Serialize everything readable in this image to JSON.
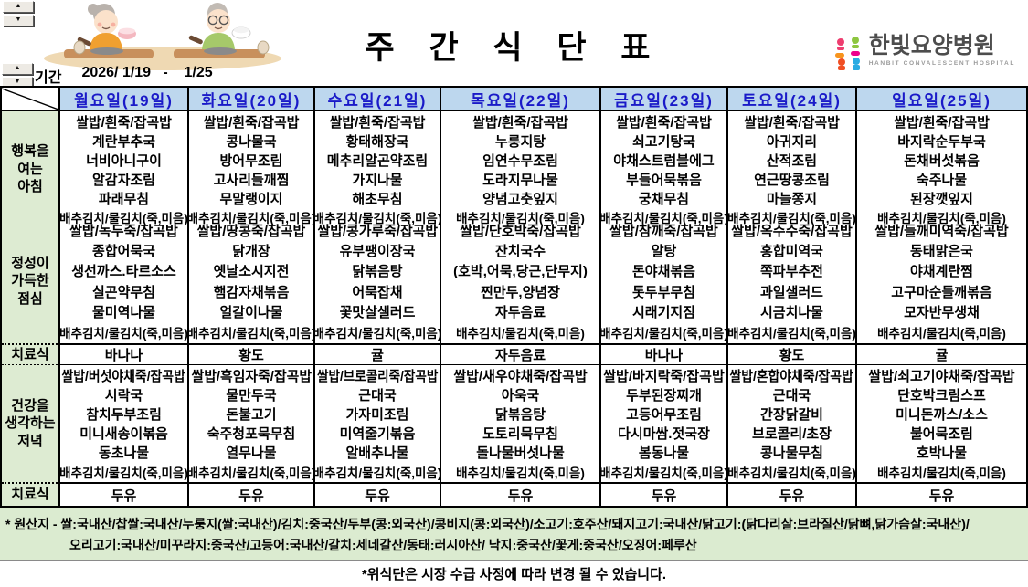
{
  "page": {
    "title": "주 간 식 단 표",
    "period_label": "기간",
    "period_value": "2026/ 1/19   -    1/25",
    "note": "*위식단은 시장 수급 사정에 따라 변경 될 수 있습니다."
  },
  "logo": {
    "name": "한빛요양병원",
    "subtitle": "HANBIT CONVALESCENT HOSPITAL",
    "mark_colors": [
      "#EE3D6F",
      "#F7941D",
      "#F04E23",
      "#8DC63F",
      "#EC008C",
      "#29ABE2"
    ]
  },
  "colors": {
    "day_header_bg": "#BDD7EE",
    "day_header_text": "#1A1AC8",
    "row_label_bg": "#DDEBD2",
    "footer_bg": "#DBEBD0",
    "border": "#000000"
  },
  "table": {
    "days": [
      "월요일(19일)",
      "화요일(20일)",
      "수요일(21일)",
      "목요일(22일)",
      "금요일(23일)",
      "토요일(24일)",
      "일요일(25일)"
    ],
    "sections": [
      {
        "type": "meal",
        "label_lines": [
          "행복을",
          "여는",
          "아침"
        ],
        "days": [
          [
            "쌀밥/흰죽/잡곡밥",
            "계란부추국",
            "너비아니구이",
            "알감자조림",
            "파래무침",
            "배추김치/물김치(죽,미음)"
          ],
          [
            "쌀밥/흰죽/잡곡밥",
            "콩나물국",
            "방어무조림",
            "고사리들깨찜",
            "무말랭이지",
            "배추김치/물김치(죽,미음)"
          ],
          [
            "쌀밥/흰죽/잡곡밥",
            "황태해장국",
            "메추리알곤약조림",
            "가지나물",
            "해초무침",
            "배추김치/물김치(죽,미음)"
          ],
          [
            "쌀밥/흰죽/잡곡밥",
            "누룽지탕",
            "임연수무조림",
            "도라지무나물",
            "양념고춧잎지",
            "배추김치/물김치(죽,미음)"
          ],
          [
            "쌀밥/흰죽/잡곡밥",
            "쇠고기탕국",
            "야채스트럼블에그",
            "부들어묵볶음",
            "궁채무침",
            "배추김치/물김치(죽,미음)"
          ],
          [
            "쌀밥/흰죽/잡곡밥",
            "아귀지리",
            "산적조림",
            "연근땅콩조림",
            "마늘쫑지",
            "배추김치/물김치(죽,미음)"
          ],
          [
            "쌀밥/흰죽/잡곡밥",
            "바지락순두부국",
            "돈채버섯볶음",
            "숙주나물",
            "된장깻잎지",
            "배추김치/물김치(죽,미음)"
          ]
        ]
      },
      {
        "type": "meal",
        "label_lines": [
          "정성이",
          "가득한",
          "점심"
        ],
        "days": [
          [
            "쌀밥/녹두죽/잡곡밥",
            "종합어묵국",
            "생선까스.타르소스",
            "실곤약무침",
            "물미역나물",
            "배추김치/물김치(죽,미음)"
          ],
          [
            "쌀밥/땅콩죽/잡곡밥",
            "닭개장",
            "옛날소시지전",
            "햄감자채볶음",
            "얼갈이나물",
            "배추김치/물김치(죽,미음)"
          ],
          [
            "쌀밥/콩가루죽/잡곡밥",
            "유부팽이장국",
            "닭볶음탕",
            "어묵잡채",
            "꽃맛살샐러드",
            "배추김치/물김치(죽,미음)"
          ],
          [
            "쌀밥/단호박죽/잡곡밥",
            "잔치국수",
            "(호박,어묵,당근,단무지)",
            "찐만두,양념장",
            "자두음료",
            "배추김치/물김치(죽,미음)"
          ],
          [
            "쌀밥/참깨죽/잡곡밥",
            "알탕",
            "돈야채볶음",
            "톳두부무침",
            "시래기지짐",
            "배추김치/물김치(죽,미음)"
          ],
          [
            "쌀밥/옥수수죽/잡곡밥",
            "홍합미역국",
            "쪽파부추전",
            "과일샐러드",
            "시금치나물",
            "배추김치/물김치(죽,미음)"
          ],
          [
            "쌀밥/들깨미역죽/잡곡밥",
            "동태맑은국",
            "야채계란찜",
            "고구마순들깨볶음",
            "모자반무생채",
            "배추김치/물김치(죽,미음)"
          ]
        ]
      },
      {
        "type": "therapy",
        "label": "치료식",
        "values": [
          "바나나",
          "황도",
          "귤",
          "자두음료",
          "바나나",
          "황도",
          "귤"
        ]
      },
      {
        "type": "meal",
        "label_lines": [
          "건강을",
          "생각하는",
          "저녁"
        ],
        "days": [
          [
            "쌀밥/버섯야채죽/잡곡밥",
            "시락국",
            "참치두부조림",
            "미니새송이볶음",
            "동초나물",
            "배추김치/물김치(죽,미음)"
          ],
          [
            "쌀밥/흑임자죽/잡곡밥",
            "물만두국",
            "돈불고기",
            "숙주청포묵무침",
            "열무나물",
            "배추김치/물김치(죽,미음)"
          ],
          [
            "쌀밥/브로콜리죽/잡곡밥",
            "근대국",
            "가자미조림",
            "미역줄기볶음",
            "알배추나물",
            "배추김치/물김치(죽,미음)"
          ],
          [
            "쌀밥/새우야채죽/잡곡밥",
            "아욱국",
            "닭볶음탕",
            "도토리묵무침",
            "돌나물버섯나물",
            "배추김치/물김치(죽,미음)"
          ],
          [
            "쌀밥/바지락죽/잡곡밥",
            "두부된장찌개",
            "고등어무조림",
            "다시마쌈.젓국장",
            "봄동나물",
            "배추김치/물김치(죽,미음)"
          ],
          [
            "쌀밥/혼합야채죽/잡곡밥",
            "근대국",
            "간장닭갈비",
            "브로콜리/초장",
            "콩나물무침",
            "배추김치/물김치(죽,미음)"
          ],
          [
            "쌀밥/쇠고기야채죽/잡곡밥",
            "단호박크림스프",
            "미니돈까스/소스",
            "불어묵조림",
            "호박나물",
            "배추김치/물김치(죽,미음)"
          ]
        ]
      },
      {
        "type": "therapy",
        "label": "치료식",
        "values": [
          "두유",
          "두유",
          "두유",
          "두유",
          "두유",
          "두유",
          "두유"
        ]
      }
    ]
  },
  "footer": {
    "origin_line1": "* 원산지 - 쌀:국내산/찹쌀:국내산/누룽지(쌀:국내산)/김치:중국산/두부(콩:외국산)/콩비지(콩:외국산)/소고기:호주산/돼지고기:국내산/닭고기:(닭다리살:브라질산/닭뼈,닭가슴살:국내산)/",
    "origin_line2": "오리고기:국내산/미꾸라지:중국산/고등어:국내산/갈치:세네갈산/동태:러시아산/ 낙지:중국산/꽃게:중국산/오징어:페루산"
  },
  "controls": {
    "spin_up": "▲",
    "spin_down": "▼"
  }
}
